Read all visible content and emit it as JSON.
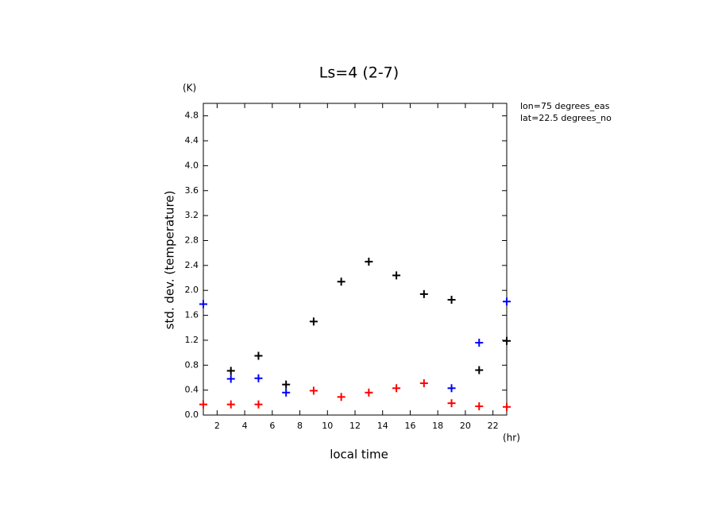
{
  "chart_data": {
    "type": "scatter",
    "title": "Ls=4 (2-7)",
    "y_unit": "(K)",
    "x_unit": "(hr)",
    "ylabel": "std. dev. (temperature)",
    "xlabel": "local time",
    "annotations": [
      "lon=75 degrees_eas",
      "lat=22.5 degrees_no"
    ],
    "x": [
      1,
      3,
      5,
      7,
      9,
      11,
      13,
      15,
      17,
      19,
      21,
      23
    ],
    "series": [
      {
        "color": "#000000",
        "values": [
          null,
          0.71,
          0.95,
          0.49,
          1.5,
          2.14,
          2.46,
          2.24,
          1.94,
          1.85,
          0.72,
          1.19
        ]
      },
      {
        "color": "#0000ff",
        "values": [
          1.78,
          0.58,
          0.59,
          0.36,
          null,
          null,
          null,
          null,
          null,
          0.43,
          1.16,
          1.82
        ]
      },
      {
        "color": "#ff0000",
        "values": [
          0.17,
          0.17,
          0.17,
          null,
          0.39,
          0.29,
          0.36,
          0.43,
          0.51,
          0.19,
          0.14,
          0.13
        ]
      }
    ],
    "xlim": [
      1,
      23
    ],
    "xticks": [
      2,
      4,
      6,
      8,
      10,
      12,
      14,
      16,
      18,
      20,
      22
    ],
    "ylim": [
      0,
      5.0
    ],
    "yticks": [
      {
        "value": 0,
        "label": "0.0"
      },
      0.4,
      0.8,
      1.2,
      1.6,
      {
        "value": 2,
        "label": "2.0"
      },
      2.4,
      2.8,
      3.2,
      3.6,
      {
        "value": 4,
        "label": "4.0"
      },
      4.4,
      4.8
    ]
  }
}
